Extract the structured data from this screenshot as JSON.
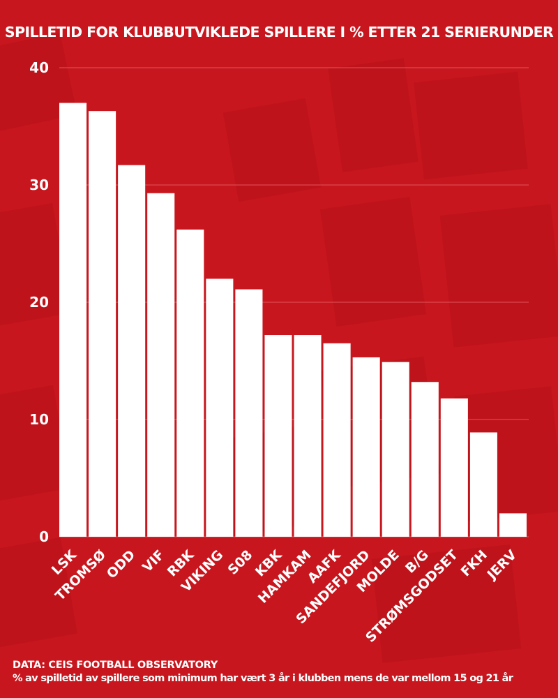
{
  "background_color": "#c8161e",
  "bar_color": "#ffffff",
  "title": "SPILLETID FOR KLUBBUTVIKLEDE SPILLERE I % ETTER 21 SERIERUNDER",
  "footer": {
    "source": "DATA: CEIS FOOTBALL OBSERVATORY",
    "note": "% av spilletid av spillere som minimum har vært 3 år i klubben mens de var mellom 15 og 21 år"
  },
  "chart_data": {
    "type": "bar",
    "categories": [
      "LSK",
      "TROMSØ",
      "ODD",
      "VIF",
      "RBK",
      "VIKING",
      "S08",
      "KBK",
      "HAMKAM",
      "AAFK",
      "SANDEFJORD",
      "MOLDE",
      "B/G",
      "STRØMSGODSET",
      "FKH",
      "JERV"
    ],
    "values": [
      37.0,
      36.3,
      31.7,
      29.3,
      26.2,
      22.0,
      21.1,
      17.2,
      17.2,
      16.5,
      15.3,
      14.9,
      13.2,
      11.8,
      8.9,
      2.0
    ],
    "ylim": [
      0,
      40
    ],
    "yticks": [
      0,
      10,
      20,
      30,
      40
    ],
    "grid": true,
    "legend": "none"
  }
}
